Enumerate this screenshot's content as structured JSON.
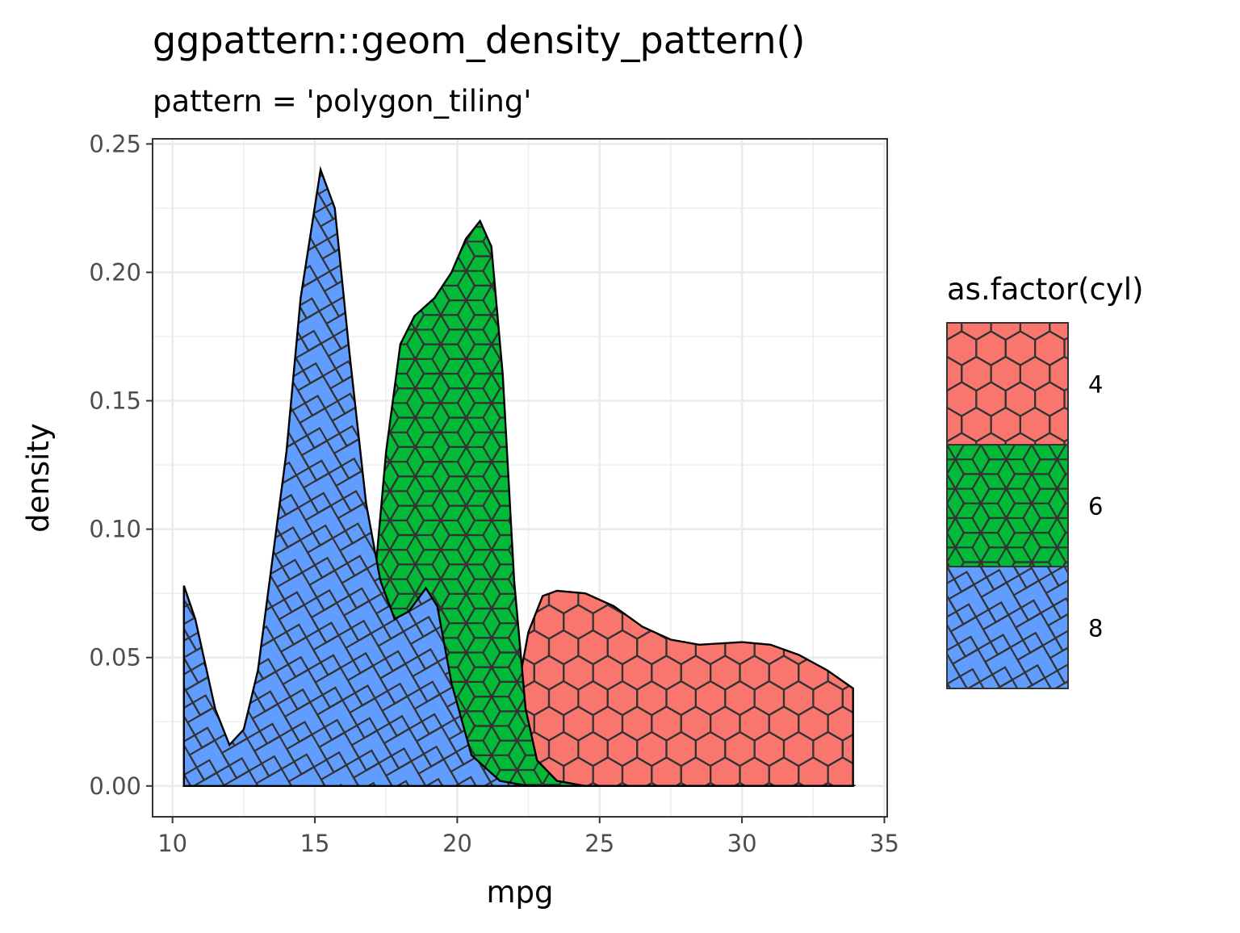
{
  "chart_data": {
    "type": "area",
    "title": "ggpattern::geom_density_pattern()",
    "subtitle": "pattern = 'polygon_tiling'",
    "xlabel": "mpg",
    "ylabel": "density",
    "xlim": [
      9.3,
      35.1
    ],
    "ylim": [
      -0.012,
      0.252
    ],
    "xticks": [
      10,
      15,
      20,
      25,
      30,
      35
    ],
    "yticks": [
      0,
      0.05,
      0.1,
      0.15,
      0.2,
      0.25
    ],
    "ytick_labels": [
      "0.00",
      "0.05",
      "0.10",
      "0.15",
      "0.20",
      "0.25"
    ],
    "grid": true,
    "legend": {
      "title": "as.factor(cyl)",
      "placement": "right"
    },
    "series": [
      {
        "name": "4",
        "color": "#F8766D",
        "pattern": "hexagonal",
        "x": [
          10.4,
          20,
          21,
          22,
          22.5,
          23,
          23.5,
          24.5,
          25.5,
          26.5,
          27.5,
          28.5,
          30,
          31,
          32,
          33,
          33.9
        ],
        "y": [
          0,
          0,
          0.005,
          0.03,
          0.06,
          0.074,
          0.076,
          0.075,
          0.07,
          0.062,
          0.057,
          0.055,
          0.056,
          0.055,
          0.051,
          0.045,
          0.038
        ]
      },
      {
        "name": "6",
        "color": "#00BA38",
        "pattern": "rhombille",
        "x": [
          10.4,
          15.5,
          16.5,
          17.1,
          17.5,
          18,
          18.5,
          19.2,
          19.8,
          20.3,
          20.8,
          21.2,
          21.6,
          22,
          22.4,
          22.8,
          23.5,
          24.5,
          33.9
        ],
        "y": [
          0,
          0,
          0.01,
          0.08,
          0.13,
          0.172,
          0.183,
          0.19,
          0.2,
          0.213,
          0.22,
          0.21,
          0.16,
          0.08,
          0.03,
          0.01,
          0.002,
          0,
          0
        ]
      },
      {
        "name": "8",
        "color": "#619CFF",
        "pattern": "pythagorean",
        "x": [
          10.4,
          10.8,
          11.5,
          12,
          12.5,
          13,
          14,
          14.5,
          15.2,
          15.7,
          16.2,
          16.8,
          17.3,
          17.8,
          18.3,
          18.9,
          19.3,
          19.8,
          20.5,
          21.5,
          22.5,
          33.9
        ],
        "y": [
          0.078,
          0.065,
          0.03,
          0.016,
          0.022,
          0.045,
          0.13,
          0.19,
          0.24,
          0.225,
          0.17,
          0.11,
          0.08,
          0.065,
          0.068,
          0.077,
          0.07,
          0.04,
          0.012,
          0.002,
          0,
          0
        ]
      }
    ]
  }
}
